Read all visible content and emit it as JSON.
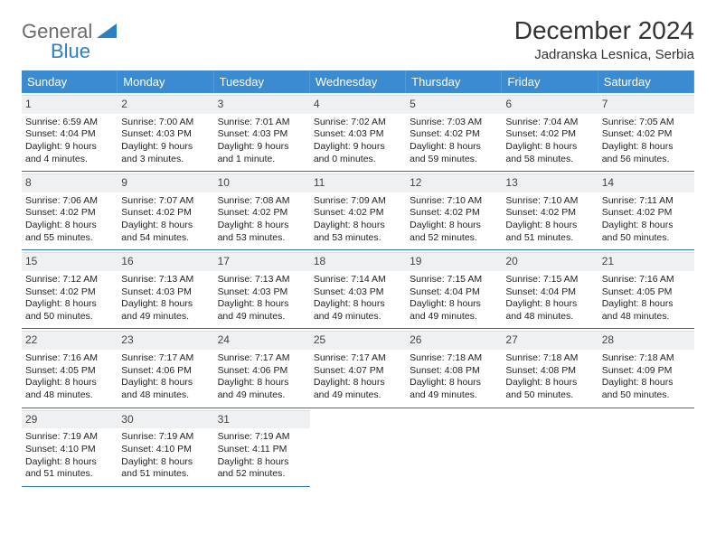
{
  "logo": {
    "text1": "General",
    "text2": "Blue"
  },
  "title": "December 2024",
  "subtitle": "Jadranska Lesnica, Serbia",
  "colors": {
    "header_bg": "#3a8bd1",
    "header_text": "#ffffff",
    "daynum_bg": "#eef0f2",
    "cell_border": "#2f6ea8",
    "logo_gray": "#6b6b6b",
    "logo_blue": "#2a7fc5"
  },
  "dayHeaders": [
    "Sunday",
    "Monday",
    "Tuesday",
    "Wednesday",
    "Thursday",
    "Friday",
    "Saturday"
  ],
  "weeks": [
    [
      {
        "n": "1",
        "sr": "Sunrise: 6:59 AM",
        "ss": "Sunset: 4:04 PM",
        "d1": "Daylight: 9 hours",
        "d2": "and 4 minutes."
      },
      {
        "n": "2",
        "sr": "Sunrise: 7:00 AM",
        "ss": "Sunset: 4:03 PM",
        "d1": "Daylight: 9 hours",
        "d2": "and 3 minutes."
      },
      {
        "n": "3",
        "sr": "Sunrise: 7:01 AM",
        "ss": "Sunset: 4:03 PM",
        "d1": "Daylight: 9 hours",
        "d2": "and 1 minute."
      },
      {
        "n": "4",
        "sr": "Sunrise: 7:02 AM",
        "ss": "Sunset: 4:03 PM",
        "d1": "Daylight: 9 hours",
        "d2": "and 0 minutes."
      },
      {
        "n": "5",
        "sr": "Sunrise: 7:03 AM",
        "ss": "Sunset: 4:02 PM",
        "d1": "Daylight: 8 hours",
        "d2": "and 59 minutes."
      },
      {
        "n": "6",
        "sr": "Sunrise: 7:04 AM",
        "ss": "Sunset: 4:02 PM",
        "d1": "Daylight: 8 hours",
        "d2": "and 58 minutes."
      },
      {
        "n": "7",
        "sr": "Sunrise: 7:05 AM",
        "ss": "Sunset: 4:02 PM",
        "d1": "Daylight: 8 hours",
        "d2": "and 56 minutes."
      }
    ],
    [
      {
        "n": "8",
        "sr": "Sunrise: 7:06 AM",
        "ss": "Sunset: 4:02 PM",
        "d1": "Daylight: 8 hours",
        "d2": "and 55 minutes."
      },
      {
        "n": "9",
        "sr": "Sunrise: 7:07 AM",
        "ss": "Sunset: 4:02 PM",
        "d1": "Daylight: 8 hours",
        "d2": "and 54 minutes."
      },
      {
        "n": "10",
        "sr": "Sunrise: 7:08 AM",
        "ss": "Sunset: 4:02 PM",
        "d1": "Daylight: 8 hours",
        "d2": "and 53 minutes."
      },
      {
        "n": "11",
        "sr": "Sunrise: 7:09 AM",
        "ss": "Sunset: 4:02 PM",
        "d1": "Daylight: 8 hours",
        "d2": "and 53 minutes."
      },
      {
        "n": "12",
        "sr": "Sunrise: 7:10 AM",
        "ss": "Sunset: 4:02 PM",
        "d1": "Daylight: 8 hours",
        "d2": "and 52 minutes."
      },
      {
        "n": "13",
        "sr": "Sunrise: 7:10 AM",
        "ss": "Sunset: 4:02 PM",
        "d1": "Daylight: 8 hours",
        "d2": "and 51 minutes."
      },
      {
        "n": "14",
        "sr": "Sunrise: 7:11 AM",
        "ss": "Sunset: 4:02 PM",
        "d1": "Daylight: 8 hours",
        "d2": "and 50 minutes."
      }
    ],
    [
      {
        "n": "15",
        "sr": "Sunrise: 7:12 AM",
        "ss": "Sunset: 4:02 PM",
        "d1": "Daylight: 8 hours",
        "d2": "and 50 minutes."
      },
      {
        "n": "16",
        "sr": "Sunrise: 7:13 AM",
        "ss": "Sunset: 4:03 PM",
        "d1": "Daylight: 8 hours",
        "d2": "and 49 minutes."
      },
      {
        "n": "17",
        "sr": "Sunrise: 7:13 AM",
        "ss": "Sunset: 4:03 PM",
        "d1": "Daylight: 8 hours",
        "d2": "and 49 minutes."
      },
      {
        "n": "18",
        "sr": "Sunrise: 7:14 AM",
        "ss": "Sunset: 4:03 PM",
        "d1": "Daylight: 8 hours",
        "d2": "and 49 minutes."
      },
      {
        "n": "19",
        "sr": "Sunrise: 7:15 AM",
        "ss": "Sunset: 4:04 PM",
        "d1": "Daylight: 8 hours",
        "d2": "and 49 minutes."
      },
      {
        "n": "20",
        "sr": "Sunrise: 7:15 AM",
        "ss": "Sunset: 4:04 PM",
        "d1": "Daylight: 8 hours",
        "d2": "and 48 minutes."
      },
      {
        "n": "21",
        "sr": "Sunrise: 7:16 AM",
        "ss": "Sunset: 4:05 PM",
        "d1": "Daylight: 8 hours",
        "d2": "and 48 minutes."
      }
    ],
    [
      {
        "n": "22",
        "sr": "Sunrise: 7:16 AM",
        "ss": "Sunset: 4:05 PM",
        "d1": "Daylight: 8 hours",
        "d2": "and 48 minutes."
      },
      {
        "n": "23",
        "sr": "Sunrise: 7:17 AM",
        "ss": "Sunset: 4:06 PM",
        "d1": "Daylight: 8 hours",
        "d2": "and 48 minutes."
      },
      {
        "n": "24",
        "sr": "Sunrise: 7:17 AM",
        "ss": "Sunset: 4:06 PM",
        "d1": "Daylight: 8 hours",
        "d2": "and 49 minutes."
      },
      {
        "n": "25",
        "sr": "Sunrise: 7:17 AM",
        "ss": "Sunset: 4:07 PM",
        "d1": "Daylight: 8 hours",
        "d2": "and 49 minutes."
      },
      {
        "n": "26",
        "sr": "Sunrise: 7:18 AM",
        "ss": "Sunset: 4:08 PM",
        "d1": "Daylight: 8 hours",
        "d2": "and 49 minutes."
      },
      {
        "n": "27",
        "sr": "Sunrise: 7:18 AM",
        "ss": "Sunset: 4:08 PM",
        "d1": "Daylight: 8 hours",
        "d2": "and 50 minutes."
      },
      {
        "n": "28",
        "sr": "Sunrise: 7:18 AM",
        "ss": "Sunset: 4:09 PM",
        "d1": "Daylight: 8 hours",
        "d2": "and 50 minutes."
      }
    ],
    [
      {
        "n": "29",
        "sr": "Sunrise: 7:19 AM",
        "ss": "Sunset: 4:10 PM",
        "d1": "Daylight: 8 hours",
        "d2": "and 51 minutes."
      },
      {
        "n": "30",
        "sr": "Sunrise: 7:19 AM",
        "ss": "Sunset: 4:10 PM",
        "d1": "Daylight: 8 hours",
        "d2": "and 51 minutes."
      },
      {
        "n": "31",
        "sr": "Sunrise: 7:19 AM",
        "ss": "Sunset: 4:11 PM",
        "d1": "Daylight: 8 hours",
        "d2": "and 52 minutes."
      },
      null,
      null,
      null,
      null
    ]
  ]
}
